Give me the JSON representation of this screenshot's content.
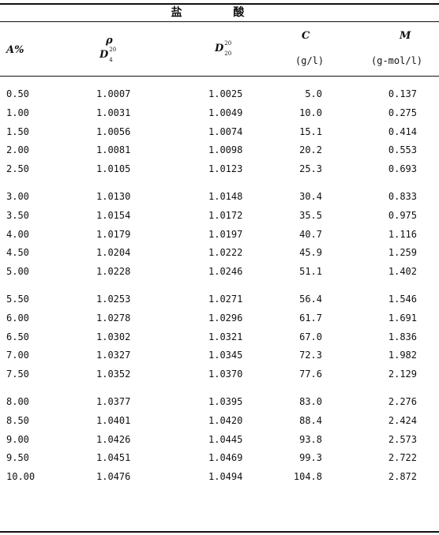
{
  "title": "盐 酸",
  "headers": {
    "a_percent": "A%",
    "rho": "ρ",
    "d4_base": "D",
    "d4_sup": "20",
    "d4_sub": "4",
    "d20_base": "D",
    "d20_sup": "20",
    "d20_sub": "20",
    "c": "C",
    "c_unit": "(g/l)",
    "m": "M",
    "m_unit": "(g-mol/l)"
  },
  "groups": [
    [
      [
        "0.50",
        "1.0007",
        "1.0025",
        "5.0",
        "0.137"
      ],
      [
        "1.00",
        "1.0031",
        "1.0049",
        "10.0",
        "0.275"
      ],
      [
        "1.50",
        "1.0056",
        "1.0074",
        "15.1",
        "0.414"
      ],
      [
        "2.00",
        "1.0081",
        "1.0098",
        "20.2",
        "0.553"
      ],
      [
        "2.50",
        "1.0105",
        "1.0123",
        "25.3",
        "0.693"
      ]
    ],
    [
      [
        "3.00",
        "1.0130",
        "1.0148",
        "30.4",
        "0.833"
      ],
      [
        "3.50",
        "1.0154",
        "1.0172",
        "35.5",
        "0.975"
      ],
      [
        "4.00",
        "1.0179",
        "1.0197",
        "40.7",
        "1.116"
      ],
      [
        "4.50",
        "1.0204",
        "1.0222",
        "45.9",
        "1.259"
      ],
      [
        "5.00",
        "1.0228",
        "1.0246",
        "51.1",
        "1.402"
      ]
    ],
    [
      [
        "5.50",
        "1.0253",
        "1.0271",
        "56.4",
        "1.546"
      ],
      [
        "6.00",
        "1.0278",
        "1.0296",
        "61.7",
        "1.691"
      ],
      [
        "6.50",
        "1.0302",
        "1.0321",
        "67.0",
        "1.836"
      ],
      [
        "7.00",
        "1.0327",
        "1.0345",
        "72.3",
        "1.982"
      ],
      [
        "7.50",
        "1.0352",
        "1.0370",
        "77.6",
        "2.129"
      ]
    ],
    [
      [
        "8.00",
        "1.0377",
        "1.0395",
        "83.0",
        "2.276"
      ],
      [
        "8.50",
        "1.0401",
        "1.0420",
        "88.4",
        "2.424"
      ],
      [
        "9.00",
        "1.0426",
        "1.0445",
        "93.8",
        "2.573"
      ],
      [
        "9.50",
        "1.0451",
        "1.0469",
        "99.3",
        "2.722"
      ],
      [
        "10.00",
        "1.0476",
        "1.0494",
        "104.8",
        "2.872"
      ]
    ]
  ]
}
